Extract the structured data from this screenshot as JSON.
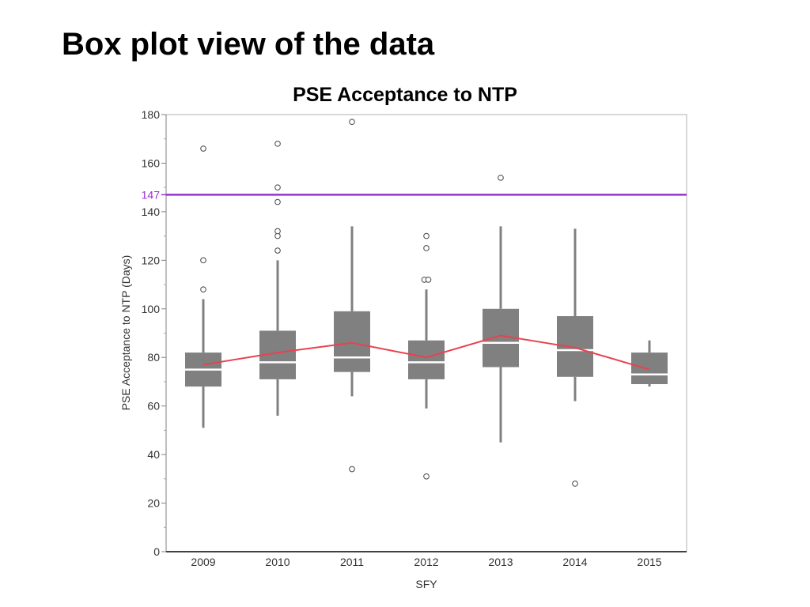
{
  "slide": {
    "title": "Box plot view of the data"
  },
  "chart_data": {
    "type": "box",
    "title": "PSE Acceptance to NTP",
    "xlabel": "SFY",
    "ylabel": "PSE Acceptance to NTP (Days)",
    "ylim": [
      0,
      180
    ],
    "yticks": [
      0,
      20,
      40,
      60,
      80,
      100,
      120,
      140,
      160,
      180
    ],
    "reference_line": {
      "value": 147,
      "label": "147",
      "color": "#9b30d0"
    },
    "mean_line_color": "#e8424e",
    "box_color": "#808080",
    "median_color": "#ffffff",
    "categories": [
      "2009",
      "2010",
      "2011",
      "2012",
      "2013",
      "2014",
      "2015"
    ],
    "boxes": [
      {
        "category": "2009",
        "whisker_low": 51,
        "q1": 68,
        "median": 75,
        "q3": 82,
        "whisker_high": 104,
        "mean": 77,
        "outliers": [
          108,
          120,
          166
        ]
      },
      {
        "category": "2010",
        "whisker_low": 56,
        "q1": 71,
        "median": 78,
        "q3": 91,
        "whisker_high": 120,
        "mean": 82,
        "outliers": [
          124,
          130,
          132,
          144,
          150,
          168
        ]
      },
      {
        "category": "2011",
        "whisker_low": 64,
        "q1": 74,
        "median": 80,
        "q3": 99,
        "whisker_high": 134,
        "mean": 86,
        "outliers": [
          34,
          177
        ]
      },
      {
        "category": "2012",
        "whisker_low": 59,
        "q1": 71,
        "median": 78,
        "q3": 87,
        "whisker_high": 108,
        "mean": 80,
        "outliers": [
          31,
          112,
          112,
          125,
          130
        ]
      },
      {
        "category": "2013",
        "whisker_low": 45,
        "q1": 76,
        "median": 86,
        "q3": 100,
        "whisker_high": 134,
        "mean": 89,
        "outliers": [
          154
        ]
      },
      {
        "category": "2014",
        "whisker_low": 62,
        "q1": 72,
        "median": 83,
        "q3": 97,
        "whisker_high": 133,
        "mean": 84,
        "outliers": [
          28
        ]
      },
      {
        "category": "2015",
        "whisker_low": 68,
        "q1": 69,
        "median": 73,
        "q3": 82,
        "whisker_high": 87,
        "mean": 75,
        "outliers": []
      }
    ]
  }
}
